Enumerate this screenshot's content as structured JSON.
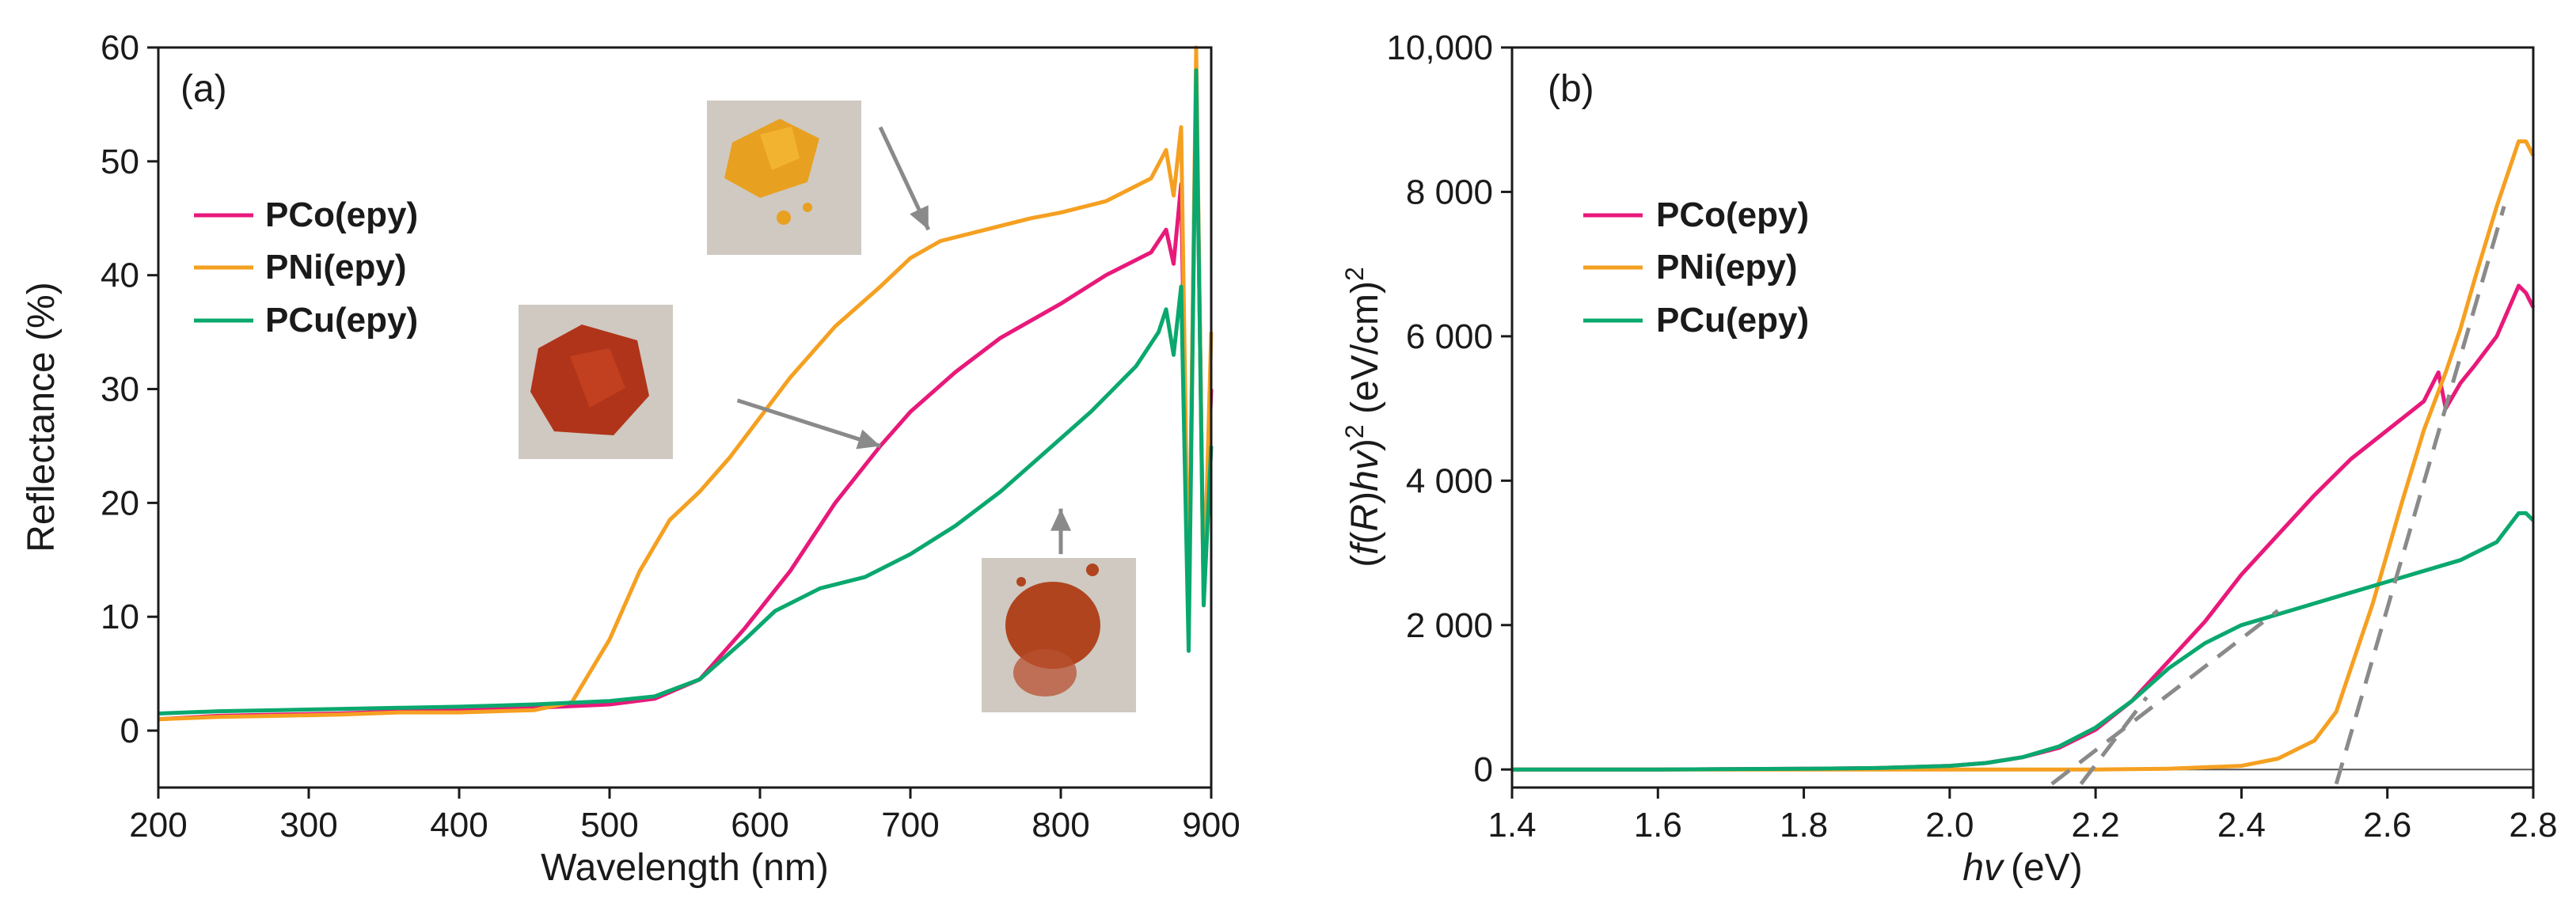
{
  "colors": {
    "PCo": "#e8197a",
    "PNi": "#f5a021",
    "PCu": "#0aa86e",
    "fit": "#8a8a8a",
    "axis": "#1a1a1a"
  },
  "chart_data": [
    {
      "type": "line",
      "panel_label": "(a)",
      "xlabel": "Wavelength (nm)",
      "ylabel": "Reflectance (%)",
      "xlim": [
        200,
        900
      ],
      "ylim": [
        -5,
        60
      ],
      "xticks": [
        "200",
        "300",
        "400",
        "500",
        "600",
        "700",
        "800",
        "900"
      ],
      "yticks": [
        "0",
        "10",
        "20",
        "30",
        "40",
        "50",
        "60"
      ],
      "legend_position": "upper-left",
      "series": [
        {
          "name": "PCo(epy)",
          "key": "PCo",
          "x": [
            200,
            240,
            280,
            320,
            360,
            400,
            450,
            500,
            530,
            560,
            590,
            620,
            650,
            680,
            700,
            730,
            760,
            800,
            830,
            860,
            870,
            875,
            880,
            885,
            890,
            895,
            900
          ],
          "y": [
            1,
            1.3,
            1.4,
            1.5,
            1.7,
            1.8,
            2,
            2.3,
            2.8,
            4.5,
            9,
            14,
            20,
            25,
            28,
            31.5,
            34.5,
            37.5,
            40,
            42,
            44,
            41,
            48,
            10,
            58,
            12,
            30
          ]
        },
        {
          "name": "PNi(epy)",
          "key": "PNi",
          "x": [
            200,
            240,
            280,
            320,
            360,
            400,
            450,
            475,
            500,
            520,
            540,
            560,
            580,
            600,
            620,
            650,
            680,
            700,
            720,
            750,
            780,
            800,
            830,
            860,
            870,
            875,
            880,
            885,
            890,
            895,
            900
          ],
          "y": [
            1,
            1.2,
            1.3,
            1.4,
            1.6,
            1.6,
            1.8,
            2.5,
            8,
            14,
            18.5,
            21,
            24,
            27.5,
            31,
            35.5,
            39,
            41.5,
            43,
            44,
            45,
            45.5,
            46.5,
            48.5,
            51,
            47,
            53,
            10,
            60,
            11,
            35
          ]
        },
        {
          "name": "PCu(epy)",
          "key": "PCu",
          "x": [
            200,
            240,
            280,
            320,
            360,
            400,
            450,
            500,
            530,
            560,
            590,
            610,
            640,
            670,
            700,
            730,
            760,
            790,
            820,
            850,
            865,
            870,
            875,
            880,
            885,
            890,
            895,
            900
          ],
          "y": [
            1.5,
            1.7,
            1.8,
            1.9,
            2,
            2.1,
            2.3,
            2.6,
            3,
            4.5,
            8,
            10.5,
            12.5,
            13.5,
            15.5,
            18,
            21,
            24.5,
            28,
            32,
            35,
            37,
            33,
            39,
            7,
            58,
            11,
            25
          ]
        }
      ],
      "inset_arrows": [
        {
          "from_x": 680,
          "from_y": 53,
          "to_x": 712,
          "to_y": 44
        },
        {
          "from_x": 585,
          "from_y": 29,
          "to_x": 680,
          "to_y": 25
        },
        {
          "from_x": 800,
          "from_y": 15.5,
          "to_x": 800,
          "to_y": 19.5
        }
      ]
    },
    {
      "type": "line",
      "panel_label": "(b)",
      "xlabel": "(eV)",
      "xlabel_italic": "hv",
      "ylabel_pre": "(",
      "ylabel_f": "f",
      "ylabel_paren_open": "(",
      "ylabel_R": "R",
      "ylabel_paren_close": ")",
      "ylabel_hv": "hv",
      "ylabel_close": ")",
      "ylabel_sup1": "2",
      "ylabel_units": " (eV/cm)",
      "ylabel_sup2": "2",
      "xlim": [
        1.4,
        2.8
      ],
      "ylim": [
        -250,
        10000
      ],
      "xticks": [
        "1.4",
        "1.6",
        "1.8",
        "2.0",
        "2.2",
        "2.4",
        "2.6",
        "2.8"
      ],
      "yticks": [
        "0",
        "2 000",
        "4 000",
        "6 000",
        "8 000",
        "10,000"
      ],
      "ytick_values": [
        0,
        2000,
        4000,
        6000,
        8000,
        10000
      ],
      "legend_position": "upper-left",
      "series": [
        {
          "name": "PCo(epy)",
          "key": "PCo",
          "x": [
            1.4,
            1.6,
            1.8,
            1.9,
            2.0,
            2.05,
            2.1,
            2.15,
            2.2,
            2.25,
            2.3,
            2.35,
            2.4,
            2.45,
            2.5,
            2.55,
            2.6,
            2.65,
            2.67,
            2.68,
            2.7,
            2.72,
            2.75,
            2.78,
            2.79,
            2.8
          ],
          "y": [
            0,
            0,
            10,
            20,
            50,
            90,
            170,
            300,
            550,
            950,
            1500,
            2050,
            2700,
            3250,
            3800,
            4300,
            4700,
            5100,
            5500,
            5000,
            5350,
            5600,
            6000,
            6700,
            6600,
            6400
          ]
        },
        {
          "name": "PNi(epy)",
          "key": "PNi",
          "x": [
            1.4,
            1.6,
            1.8,
            2.0,
            2.2,
            2.3,
            2.4,
            2.45,
            2.5,
            2.53,
            2.55,
            2.58,
            2.6,
            2.62,
            2.65,
            2.68,
            2.7,
            2.72,
            2.75,
            2.78,
            2.79,
            2.8
          ],
          "y": [
            0,
            0,
            0,
            0,
            0,
            10,
            50,
            150,
            400,
            800,
            1400,
            2300,
            3000,
            3700,
            4700,
            5500,
            6100,
            6800,
            7800,
            8700,
            8700,
            8500
          ]
        },
        {
          "name": "PCu(epy)",
          "key": "PCu",
          "x": [
            1.4,
            1.6,
            1.8,
            1.9,
            2.0,
            2.05,
            2.1,
            2.15,
            2.2,
            2.25,
            2.3,
            2.35,
            2.4,
            2.45,
            2.5,
            2.55,
            2.6,
            2.65,
            2.7,
            2.75,
            2.78,
            2.79,
            2.8
          ],
          "y": [
            0,
            0,
            10,
            20,
            50,
            90,
            170,
            320,
            580,
            950,
            1400,
            1750,
            2000,
            2150,
            2300,
            2450,
            2600,
            2750,
            2900,
            3150,
            3550,
            3550,
            3450
          ]
        }
      ],
      "fit_lines": [
        {
          "x": [
            2.14,
            2.45
          ],
          "y": [
            -200,
            2200
          ]
        },
        {
          "x": [
            2.18,
            2.27
          ],
          "y": [
            -200,
            1000
          ]
        },
        {
          "x": [
            2.53,
            2.76
          ],
          "y": [
            -200,
            7800
          ]
        }
      ]
    }
  ]
}
